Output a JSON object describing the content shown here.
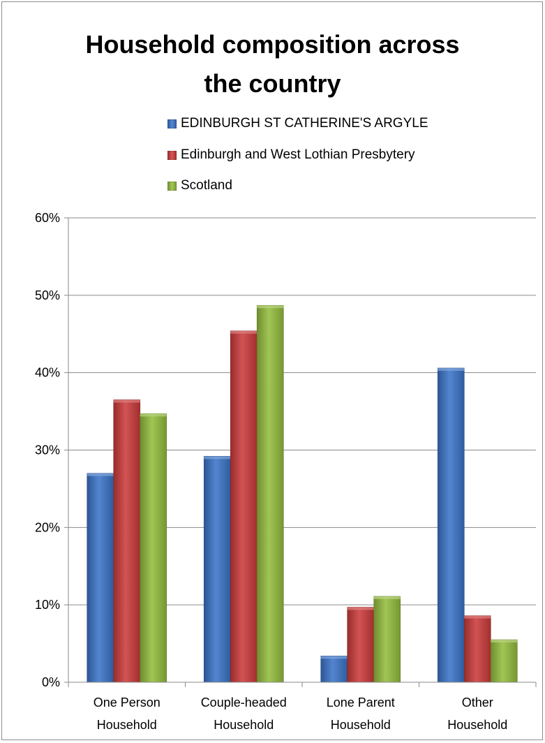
{
  "chart_data": {
    "type": "bar",
    "title": "Household composition across the country",
    "title_lines": [
      "Household composition across",
      "the country"
    ],
    "categories": [
      "One Person Household",
      "Couple-headed Household",
      "Lone Parent Household",
      "Other Household"
    ],
    "category_lines": [
      [
        "One Person",
        "Household"
      ],
      [
        "Couple-headed",
        "Household"
      ],
      [
        "Lone Parent",
        "Household"
      ],
      [
        "Other",
        "Household"
      ]
    ],
    "series": [
      {
        "name": "EDINBURGH ST CATHERINE'S ARGYLE",
        "color": "#3b74c8",
        "values": [
          0.27,
          0.292,
          0.034,
          0.406
        ]
      },
      {
        "name": "Edinburgh and West Lothian Presbytery",
        "color": "#cc3b3b",
        "values": [
          0.365,
          0.454,
          0.097,
          0.086
        ]
      },
      {
        "name": "Scotland",
        "color": "#94bd3e",
        "values": [
          0.347,
          0.487,
          0.111,
          0.055
        ]
      }
    ],
    "ylim": [
      0,
      0.6
    ],
    "yticks": [
      0,
      0.1,
      0.2,
      0.3,
      0.4,
      0.5,
      0.6
    ],
    "ytick_labels": [
      "0%",
      "10%",
      "20%",
      "30%",
      "40%",
      "50%",
      "60%"
    ],
    "xlabel": "",
    "ylabel": "",
    "grid": true,
    "legend_position": "top"
  }
}
